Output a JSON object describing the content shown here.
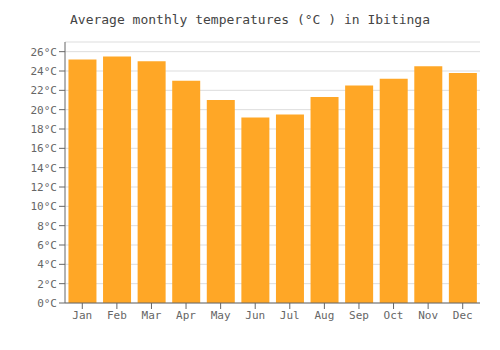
{
  "chart_data": {
    "type": "bar",
    "title": "Average monthly temperatures (°C ) in Ibitinga",
    "categories": [
      "Jan",
      "Feb",
      "Mar",
      "Apr",
      "May",
      "Jun",
      "Jul",
      "Aug",
      "Sep",
      "Oct",
      "Nov",
      "Dec"
    ],
    "values": [
      25.2,
      25.5,
      25.0,
      23.0,
      21.0,
      19.2,
      19.5,
      21.3,
      22.5,
      23.2,
      24.5,
      23.8
    ],
    "color": "#FFA726",
    "ylim": [
      0,
      27
    ],
    "yticks": [
      {
        "value": 0,
        "label": "0°C"
      },
      {
        "value": 2,
        "label": "2°C"
      },
      {
        "value": 4,
        "label": "4°C"
      },
      {
        "value": 6,
        "label": "6°C"
      },
      {
        "value": 8,
        "label": "8°C"
      },
      {
        "value": 10,
        "label": "10°C"
      },
      {
        "value": 12,
        "label": "12°C"
      },
      {
        "value": 14,
        "label": "14°C"
      },
      {
        "value": 16,
        "label": "16°C"
      },
      {
        "value": 18,
        "label": "18°C"
      },
      {
        "value": 20,
        "label": "20°C"
      },
      {
        "value": 22,
        "label": "22°C"
      },
      {
        "value": 24,
        "label": "24°C"
      },
      {
        "value": 26,
        "label": "26°C"
      }
    ],
    "grid": true
  }
}
